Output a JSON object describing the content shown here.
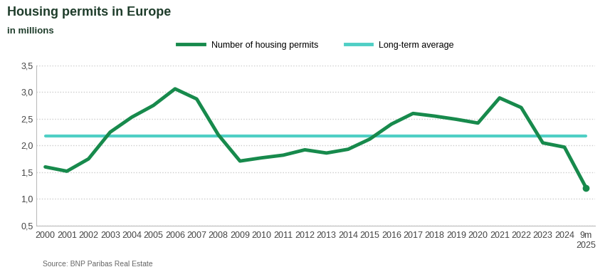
{
  "chart_data": {
    "type": "line",
    "title": "Housing permits in Europe",
    "subtitle": "in millions",
    "source": "Source: BNP Paribas Real Estate",
    "categories": [
      "2000",
      "2001",
      "2002",
      "2003",
      "2004",
      "2005",
      "2006",
      "2007",
      "2008",
      "2009",
      "2010",
      "2011",
      "2012",
      "2013",
      "2014",
      "2015",
      "2016",
      "2017",
      "2018",
      "2019",
      "2020",
      "2021",
      "2022",
      "2023",
      "2024",
      "9m\n2025"
    ],
    "series": [
      {
        "name": "Number of housing permits",
        "color": "#178a4c",
        "values": [
          1.6,
          1.52,
          1.75,
          2.25,
          2.53,
          2.75,
          3.06,
          2.87,
          2.2,
          1.71,
          1.77,
          1.82,
          1.92,
          1.86,
          1.93,
          2.12,
          2.4,
          2.6,
          2.55,
          2.49,
          2.42,
          2.89,
          2.71,
          2.05,
          1.97,
          1.21
        ]
      },
      {
        "name": "Long-term average",
        "color": "#4fcfc5",
        "values": [
          2.18,
          2.18,
          2.18,
          2.18,
          2.18,
          2.18,
          2.18,
          2.18,
          2.18,
          2.18,
          2.18,
          2.18,
          2.18,
          2.18,
          2.18,
          2.18,
          2.18,
          2.18,
          2.18,
          2.18,
          2.18,
          2.18,
          2.18,
          2.18,
          2.18,
          2.18
        ]
      }
    ],
    "ylim": [
      0.5,
      3.5
    ],
    "yticks": [
      {
        "value": 0.5,
        "label": "0,5"
      },
      {
        "value": 1.0,
        "label": "1,0"
      },
      {
        "value": 1.5,
        "label": "1,5"
      },
      {
        "value": 2.0,
        "label": "2,0"
      },
      {
        "value": 2.5,
        "label": "2,5"
      },
      {
        "value": 3.0,
        "label": "3,0"
      },
      {
        "value": 3.5,
        "label": "3,5"
      }
    ],
    "grid": true,
    "legend": "upper center"
  }
}
